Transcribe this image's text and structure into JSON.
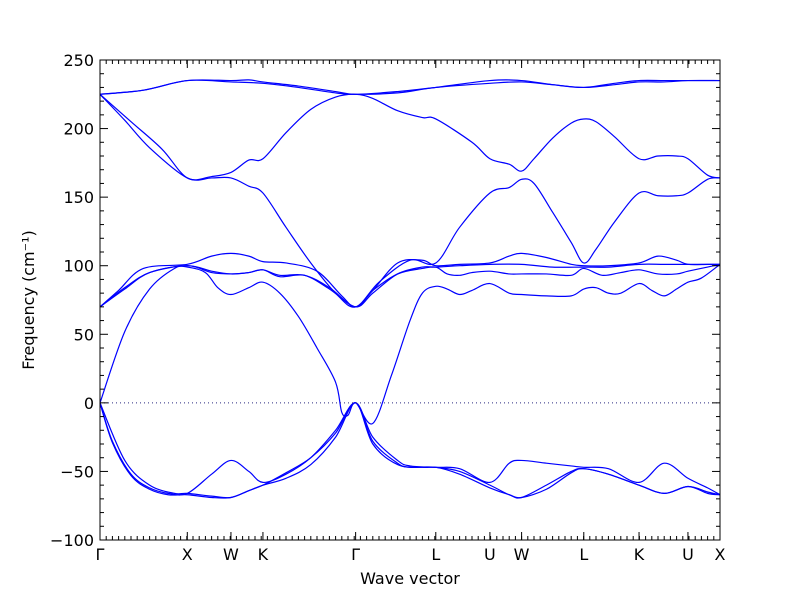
{
  "chart_data": {
    "type": "line",
    "xlabel": "Wave vector",
    "ylabel": "Frequency (cm⁻¹)",
    "ylim": [
      -100,
      250
    ],
    "yticks": [
      -100,
      -50,
      0,
      50,
      100,
      150,
      200,
      250
    ],
    "xlim": [
      0,
      1
    ],
    "high_symmetry_points": [
      {
        "label": "Γ",
        "x": 0.0
      },
      {
        "label": "X",
        "x": 0.1408
      },
      {
        "label": "W",
        "x": 0.2112
      },
      {
        "label": "K",
        "x": 0.2628
      },
      {
        "label": "Γ",
        "x": 0.4123
      },
      {
        "label": "L",
        "x": 0.5416
      },
      {
        "label": "U",
        "x": 0.6289
      },
      {
        "label": "W",
        "x": 0.68
      },
      {
        "label": "L",
        "x": 0.7803
      },
      {
        "label": "K",
        "x": 0.8694
      },
      {
        "label": "U",
        "x": 0.9483
      },
      {
        "label": "X",
        "x": 1.0
      }
    ],
    "zero_line": true,
    "grid": false,
    "series_color": "#0000ff",
    "series": [
      {
        "x": [
          0,
          0.07,
          0.1408,
          0.2112,
          0.24,
          0.2628,
          0.32,
          0.38,
          0.4123,
          0.48,
          0.5416,
          0.6289,
          0.68,
          0.73,
          0.7803,
          0.83,
          0.8694,
          0.91,
          0.9483,
          1.0
        ],
        "values": [
          225,
          228,
          235,
          235,
          235.5,
          234,
          231,
          227,
          225,
          227,
          230,
          235,
          235,
          232,
          230,
          233,
          235,
          235,
          235,
          235
        ]
      },
      {
        "x": [
          0,
          0.07,
          0.1408,
          0.2112,
          0.2628,
          0.32,
          0.38,
          0.4123,
          0.48,
          0.5416,
          0.6289,
          0.68,
          0.73,
          0.7803,
          0.83,
          0.8694,
          0.91,
          0.9483,
          1.0
        ],
        "values": [
          225,
          228,
          235,
          234,
          233,
          230,
          226,
          225,
          226,
          230,
          233,
          234,
          232,
          230,
          232,
          234,
          234,
          235,
          235
        ]
      },
      {
        "x": [
          0,
          0.05,
          0.1,
          0.1408,
          0.18,
          0.2112,
          0.24,
          0.2628,
          0.3,
          0.34,
          0.38,
          0.4123,
          0.44,
          0.48,
          0.52,
          0.5416,
          0.6,
          0.6289,
          0.66,
          0.68,
          0.7,
          0.73,
          0.76,
          0.7803,
          0.8,
          0.83,
          0.8694,
          0.9,
          0.93,
          0.9483,
          0.98,
          1.0
        ],
        "values": [
          225,
          205,
          185,
          164,
          165,
          168,
          177,
          178,
          197,
          214,
          223,
          225,
          222,
          213,
          208,
          207,
          190,
          178,
          174,
          169,
          178,
          193,
          204,
          207,
          205,
          194,
          178,
          180,
          180,
          178,
          166,
          164
        ]
      },
      {
        "x": [
          0,
          0.04,
          0.08,
          0.1408,
          0.18,
          0.2112,
          0.24,
          0.2628,
          0.3,
          0.34,
          0.38,
          0.4123,
          0.45,
          0.5,
          0.5416,
          0.58,
          0.6289,
          0.66,
          0.68,
          0.7,
          0.73,
          0.76,
          0.7803,
          0.8,
          0.83,
          0.8694,
          0.9,
          0.93,
          0.9483,
          0.98,
          1.0
        ],
        "values": [
          225,
          206,
          186,
          164,
          164,
          164,
          158,
          153,
          128,
          102,
          80,
          70,
          88,
          104,
          102,
          128,
          153,
          157,
          163,
          160,
          139,
          117,
          102,
          112,
          132,
          153,
          151,
          151,
          153,
          163,
          164
        ]
      },
      {
        "x": [
          0,
          0.03,
          0.07,
          0.1408,
          0.18,
          0.2112,
          0.24,
          0.2628,
          0.3,
          0.35,
          0.39,
          0.4123,
          0.44,
          0.48,
          0.52,
          0.5416,
          0.58,
          0.6289,
          0.66,
          0.68,
          0.72,
          0.76,
          0.7803,
          0.82,
          0.8694,
          0.9,
          0.93,
          0.9483,
          0.98,
          1.0
        ],
        "values": [
          70,
          82,
          98,
          101,
          107,
          109,
          107,
          103,
          102,
          96,
          78,
          70,
          82,
          102,
          104,
          100,
          101,
          102,
          107,
          109,
          106,
          101,
          100,
          100,
          102,
          107,
          104,
          101,
          101,
          101
        ]
      },
      {
        "x": [
          0,
          0.04,
          0.08,
          0.1408,
          0.18,
          0.2112,
          0.24,
          0.2628,
          0.29,
          0.33,
          0.37,
          0.4123,
          0.44,
          0.48,
          0.52,
          0.5416,
          0.58,
          0.6289,
          0.68,
          0.73,
          0.7803,
          0.82,
          0.8694,
          0.91,
          0.9483,
          1.0
        ],
        "values": [
          70,
          84,
          95,
          100,
          96,
          94,
          95,
          97,
          93,
          93,
          83,
          70,
          80,
          94,
          99,
          99,
          100,
          101,
          101,
          99,
          99,
          99,
          101,
          101,
          101,
          101
        ]
      },
      {
        "x": [
          0,
          0.04,
          0.08,
          0.1408,
          0.18,
          0.2112,
          0.24,
          0.2628,
          0.29,
          0.33,
          0.37,
          0.4123,
          0.44,
          0.48,
          0.52,
          0.5416,
          0.56,
          0.58,
          0.6,
          0.6289,
          0.66,
          0.68,
          0.72,
          0.76,
          0.7803,
          0.81,
          0.84,
          0.8694,
          0.9,
          0.93,
          0.9483,
          0.98,
          1.0
        ],
        "values": [
          70,
          83,
          95,
          100,
          95,
          94,
          95,
          97,
          92,
          93,
          84,
          70,
          82,
          94,
          98,
          99,
          94,
          93,
          95,
          96,
          94,
          94,
          94,
          93,
          98,
          93,
          95,
          97,
          94,
          94,
          96,
          99,
          101
        ]
      },
      {
        "x": [
          0,
          0.04,
          0.08,
          0.12,
          0.1408,
          0.17,
          0.19,
          0.2112,
          0.24,
          0.2628,
          0.29,
          0.32,
          0.35,
          0.38,
          0.39,
          0.4,
          0.4123,
          0.44,
          0.47,
          0.5,
          0.52,
          0.5416,
          0.56,
          0.58,
          0.6,
          0.6289,
          0.66,
          0.68,
          0.72,
          0.76,
          0.7803,
          0.8,
          0.82,
          0.84,
          0.8694,
          0.89,
          0.91,
          0.93,
          0.9483,
          0.97,
          1.0
        ],
        "values": [
          0,
          52,
          83,
          98,
          99,
          95,
          84,
          79,
          84,
          88,
          80,
          63,
          40,
          15,
          -7,
          -9,
          0,
          -15,
          20,
          60,
          80,
          85,
          83,
          79,
          82,
          87,
          80,
          79,
          78,
          78,
          83,
          84,
          80,
          80,
          87,
          82,
          78,
          83,
          88,
          91,
          101
        ]
      },
      {
        "x": [
          0,
          0.02,
          0.05,
          0.08,
          0.11,
          0.1408,
          0.18,
          0.2112,
          0.24,
          0.2628,
          0.3,
          0.34,
          0.38,
          0.4123,
          0.44,
          0.48,
          0.5,
          0.5416,
          0.58,
          0.6289,
          0.66,
          0.68,
          0.72,
          0.76,
          0.7803,
          0.82,
          0.8694,
          0.91,
          0.9483,
          0.98,
          1.0
        ],
        "values": [
          0,
          -28,
          -52,
          -62,
          -66,
          -66,
          -52,
          -42,
          -50,
          -58,
          -52,
          -40,
          -20,
          0,
          -25,
          -42,
          -46,
          -47,
          -48,
          -58,
          -44,
          -42,
          -44,
          -46,
          -47,
          -48,
          -58,
          -44,
          -55,
          -62,
          -67
        ]
      },
      {
        "x": [
          0,
          0.02,
          0.05,
          0.08,
          0.11,
          0.1408,
          0.18,
          0.2112,
          0.24,
          0.2628,
          0.3,
          0.34,
          0.38,
          0.4123,
          0.44,
          0.48,
          0.5,
          0.5416,
          0.58,
          0.6289,
          0.66,
          0.68,
          0.72,
          0.76,
          0.7803,
          0.82,
          0.8694,
          0.91,
          0.9483,
          0.98,
          1.0
        ],
        "values": [
          0,
          -29,
          -53,
          -63,
          -67,
          -67,
          -69,
          -69,
          -64,
          -60,
          -55,
          -45,
          -25,
          0,
          -28,
          -44,
          -47,
          -47,
          -52,
          -62,
          -67,
          -69,
          -63,
          -51,
          -48,
          -52,
          -60,
          -66,
          -61,
          -65,
          -67
        ]
      },
      {
        "x": [
          0,
          0.04,
          0.08,
          0.12,
          0.1408,
          0.18,
          0.2112,
          0.24,
          0.2628,
          0.3,
          0.34,
          0.38,
          0.4123,
          0.44,
          0.48,
          0.52,
          0.5416,
          0.58,
          0.6289,
          0.66,
          0.68,
          0.72,
          0.76,
          0.7803,
          0.82,
          0.8694,
          0.91,
          0.9483,
          0.98,
          1.0
        ],
        "values": [
          0,
          -42,
          -60,
          -66,
          -66,
          -68,
          -69,
          -64,
          -60,
          -51,
          -40,
          -22,
          0,
          -30,
          -45,
          -47,
          -47,
          -50,
          -60,
          -67,
          -69,
          -60,
          -50,
          -48,
          -52,
          -60,
          -66,
          -61,
          -66,
          -67
        ]
      }
    ]
  }
}
